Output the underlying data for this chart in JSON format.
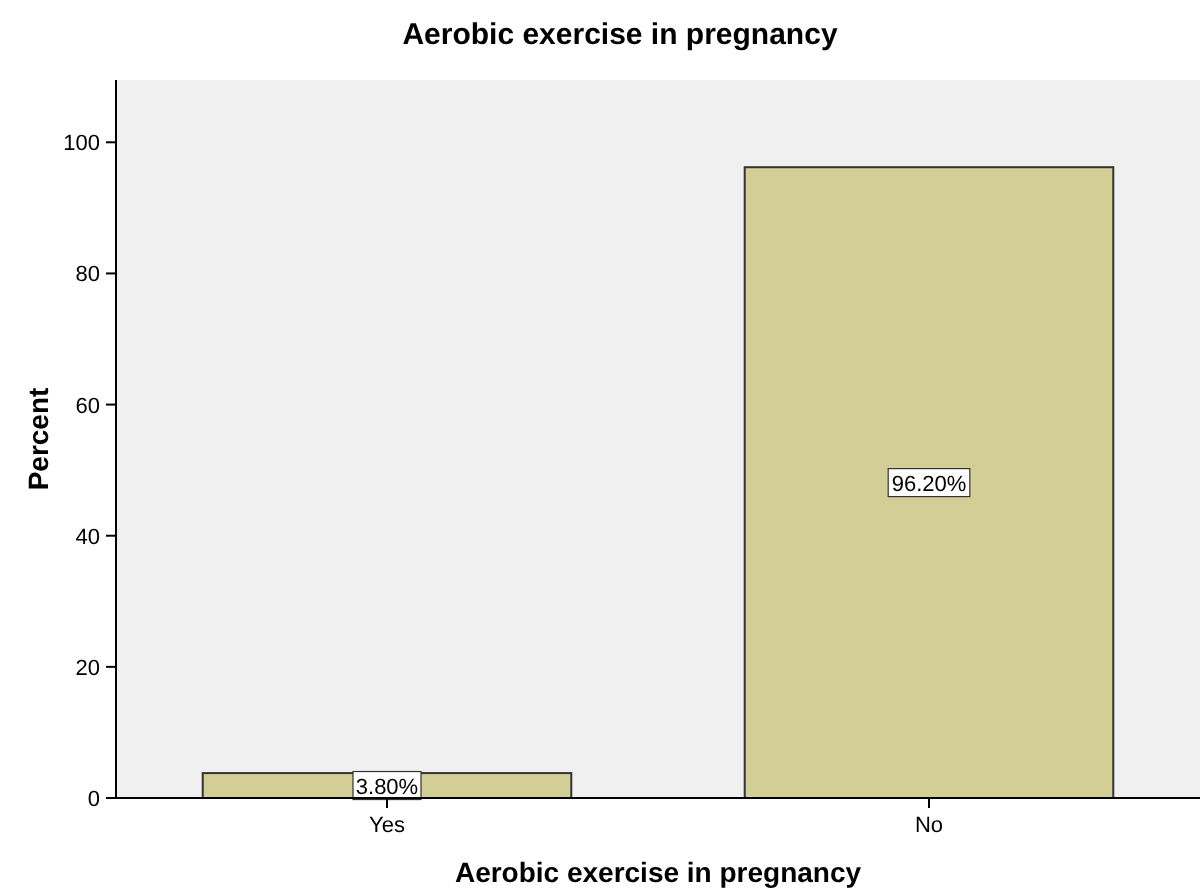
{
  "chart_data": {
    "type": "bar",
    "title": "Aerobic exercise in pregnancy",
    "xlabel": "Aerobic exercise in pregnancy",
    "ylabel": "Percent",
    "categories": [
      "Yes",
      "No"
    ],
    "values": [
      3.8,
      96.2
    ],
    "color": "#d3ce96",
    "value_labels": [
      "3.80%",
      "96.20%"
    ],
    "ylim": [
      0,
      109.5
    ],
    "yticks": [
      0,
      20,
      40,
      60,
      80,
      100
    ],
    "grid": false
  }
}
